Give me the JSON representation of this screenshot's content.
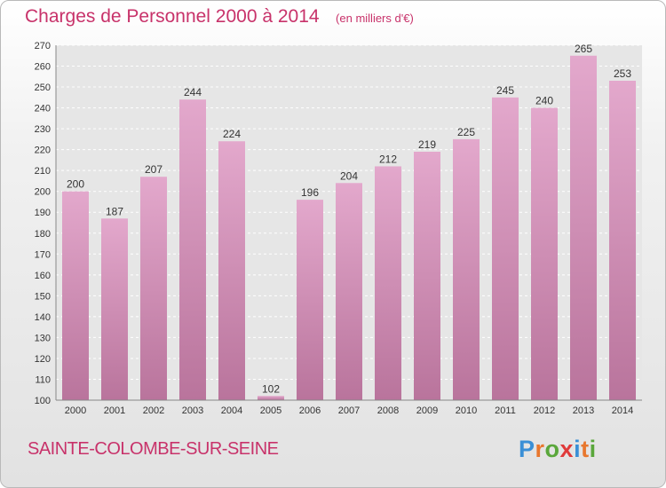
{
  "chart_data": {
    "type": "bar",
    "title": "Charges de Personnel 2000 à 2014",
    "subtitle": "(en milliers d'€)",
    "categories": [
      "2000",
      "2001",
      "2002",
      "2003",
      "2004",
      "2005",
      "2006",
      "2007",
      "2008",
      "2009",
      "2010",
      "2011",
      "2012",
      "2013",
      "2014"
    ],
    "values": [
      200,
      187,
      207,
      244,
      224,
      102,
      196,
      204,
      212,
      219,
      225,
      245,
      240,
      265,
      253
    ],
    "ylim": [
      100,
      270
    ],
    "yticks": [
      100,
      110,
      120,
      130,
      140,
      150,
      160,
      170,
      180,
      190,
      200,
      210,
      220,
      230,
      240,
      250,
      260,
      270
    ],
    "grid": true,
    "bar_color": "#d38bb4"
  },
  "commune": "SAINTE-COLOMBE-SUR-SEINE",
  "logo": {
    "text": "Proxiti",
    "letters": [
      "P",
      "r",
      "o",
      "x",
      "i",
      "t",
      "i"
    ],
    "colors": [
      "#3a8fd6",
      "#e8772e",
      "#5aa73b",
      "#e03a3a",
      "#3a8fd6",
      "#e8772e",
      "#5aa73b"
    ]
  }
}
